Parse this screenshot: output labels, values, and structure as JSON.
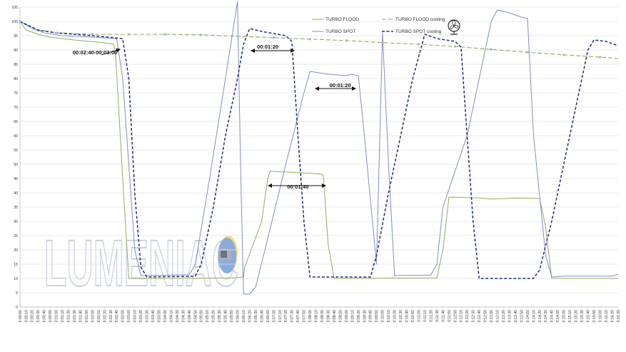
{
  "chart_data": {
    "type": "line",
    "title": "",
    "xlabel": "",
    "ylabel": "",
    "ylim": [
      0,
      105
    ],
    "yticks": [
      0,
      5,
      10,
      15,
      20,
      25,
      30,
      35,
      40,
      45,
      50,
      55,
      60,
      65,
      70,
      75,
      80,
      85,
      90,
      95,
      100,
      105
    ],
    "x_start_seconds": 0,
    "x_end_seconds": 990,
    "x_tick_step_seconds": 10,
    "grid": "y-major",
    "legend_position": "top-right",
    "series": [
      {
        "name": "TURBO FLOOD",
        "color": "#8fae5a",
        "dash": "solid",
        "points": [
          [
            "00:00",
            100
          ],
          [
            "00:10",
            97
          ],
          [
            "00:30",
            95.5
          ],
          [
            "00:50",
            94.5
          ],
          [
            "01:30",
            93.5
          ],
          [
            "02:20",
            92.5
          ],
          [
            "02:35",
            92
          ],
          [
            "02:38",
            89
          ],
          [
            "02:40",
            82
          ],
          [
            "02:50",
            45
          ],
          [
            "03:00",
            10
          ],
          [
            "03:30",
            10
          ],
          [
            "05:50",
            10.2
          ],
          [
            "06:10",
            10.5
          ],
          [
            "06:12",
            14
          ],
          [
            "06:40",
            30
          ],
          [
            "06:50",
            45
          ],
          [
            "06:54",
            47.5
          ],
          [
            "07:30",
            47.2
          ],
          [
            "08:00",
            46.8
          ],
          [
            "08:20",
            46.5
          ],
          [
            "08:22",
            46
          ],
          [
            "08:30",
            22
          ],
          [
            "08:40",
            10
          ],
          [
            "11:30",
            10.2
          ],
          [
            "11:40",
            20
          ],
          [
            "11:50",
            38.5
          ],
          [
            "12:40",
            38.2
          ],
          [
            "13:00",
            37.8
          ],
          [
            "13:40",
            38.2
          ],
          [
            "14:20",
            38
          ],
          [
            "14:30",
            28
          ],
          [
            "14:40",
            10
          ],
          [
            "16:30",
            10
          ]
        ]
      },
      {
        "name": "TURBO FLOOD cooling",
        "color": "#8fae5a",
        "dash": "long-dash",
        "points": [
          [
            "00:00",
            100
          ],
          [
            "00:30",
            97
          ],
          [
            "01:00",
            96
          ],
          [
            "02:00",
            95.5
          ],
          [
            "03:00",
            95.5
          ],
          [
            "04:00",
            95.5
          ],
          [
            "05:00",
            95.3
          ],
          [
            "06:00",
            94.8
          ],
          [
            "07:00",
            94.3
          ],
          [
            "08:00",
            93.8
          ],
          [
            "09:00",
            93.3
          ],
          [
            "10:00",
            92.6
          ],
          [
            "11:00",
            92
          ],
          [
            "12:00",
            91.2
          ],
          [
            "13:00",
            90.2
          ],
          [
            "14:00",
            89.2
          ],
          [
            "15:00",
            88.3
          ],
          [
            "16:00",
            87.5
          ],
          [
            "16:30",
            87
          ]
        ]
      },
      {
        "name": "TURBO SPOT",
        "color": "#7d8fc7",
        "dash": "solid",
        "points": [
          [
            "00:00",
            100
          ],
          [
            "00:20",
            97.5
          ],
          [
            "00:40",
            96
          ],
          [
            "01:10",
            95
          ],
          [
            "02:00",
            94.5
          ],
          [
            "02:40",
            94
          ],
          [
            "02:50",
            80
          ],
          [
            "03:00",
            50
          ],
          [
            "03:10",
            20
          ],
          [
            "03:20",
            11
          ],
          [
            "04:40",
            11.3
          ],
          [
            "04:50",
            15
          ],
          [
            "05:10",
            40
          ],
          [
            "05:40",
            80
          ],
          [
            "06:00",
            107
          ],
          [
            "06:05",
            50
          ],
          [
            "06:10",
            4.5
          ],
          [
            "06:20",
            4.5
          ],
          [
            "06:30",
            7
          ],
          [
            "06:50",
            24
          ],
          [
            "07:20",
            50
          ],
          [
            "07:50",
            75
          ],
          [
            "08:00",
            82.5
          ],
          [
            "08:30",
            81.5
          ],
          [
            "09:00",
            81
          ],
          [
            "09:10",
            81.5
          ],
          [
            "09:20",
            81
          ],
          [
            "09:30",
            60
          ],
          [
            "09:50",
            15
          ],
          [
            "10:00",
            96
          ],
          [
            "10:10",
            50
          ],
          [
            "10:20",
            11
          ],
          [
            "11:20",
            11.2
          ],
          [
            "11:30",
            15
          ],
          [
            "11:40",
            35
          ],
          [
            "12:20",
            60
          ],
          [
            "12:50",
            90
          ],
          [
            "13:00",
            100
          ],
          [
            "13:10",
            104
          ],
          [
            "13:30",
            103
          ],
          [
            "13:50",
            101.5
          ],
          [
            "14:00",
            101
          ],
          [
            "14:10",
            60
          ],
          [
            "14:30",
            18
          ],
          [
            "14:40",
            10.5
          ],
          [
            "15:00",
            10.8
          ],
          [
            "16:20",
            10.8
          ],
          [
            "16:30",
            11.5
          ]
        ]
      },
      {
        "name": "TURBO SPOT cooling",
        "color": "#1f2f7a",
        "dash": "dash",
        "points": [
          [
            "00:00",
            100
          ],
          [
            "00:30",
            97
          ],
          [
            "01:00",
            96
          ],
          [
            "02:00",
            95
          ],
          [
            "02:50",
            94
          ],
          [
            "03:00",
            80
          ],
          [
            "03:10",
            40
          ],
          [
            "03:20",
            14
          ],
          [
            "03:30",
            10.5
          ],
          [
            "04:50",
            10.8
          ],
          [
            "05:00",
            15
          ],
          [
            "05:20",
            35
          ],
          [
            "05:40",
            60
          ],
          [
            "06:00",
            80
          ],
          [
            "06:10",
            92
          ],
          [
            "06:20",
            97.5
          ],
          [
            "06:40",
            96.5
          ],
          [
            "07:20",
            95
          ],
          [
            "07:30",
            93
          ],
          [
            "07:40",
            60
          ],
          [
            "07:50",
            30
          ],
          [
            "08:00",
            10.5
          ],
          [
            "09:40",
            10.5
          ],
          [
            "09:50",
            18
          ],
          [
            "10:10",
            40
          ],
          [
            "10:30",
            60
          ],
          [
            "10:50",
            80
          ],
          [
            "11:10",
            95.5
          ],
          [
            "11:30",
            94
          ],
          [
            "12:00",
            93
          ],
          [
            "12:10",
            91
          ],
          [
            "12:20",
            60
          ],
          [
            "12:30",
            30
          ],
          [
            "12:40",
            10
          ],
          [
            "14:10",
            10
          ],
          [
            "14:20",
            13
          ],
          [
            "14:40",
            30
          ],
          [
            "15:00",
            50
          ],
          [
            "15:20",
            70
          ],
          [
            "15:40",
            90
          ],
          [
            "15:50",
            93.5
          ],
          [
            "16:10",
            93
          ],
          [
            "16:30",
            91.5
          ]
        ]
      }
    ],
    "annotations": [
      {
        "text": "00:02:40-00:03:00",
        "x": "02:04",
        "y": 88.5
      },
      {
        "text": "00:01:20",
        "x": "06:50",
        "y": 90.5
      },
      {
        "text": "00:01:20",
        "x": "08:50",
        "y": 77
      },
      {
        "text": "00:01:40",
        "x": "07:40",
        "y": 41.5
      }
    ],
    "x_tick_labels": [
      "0:00:00",
      "0:00:10",
      "0:00:20",
      "0:00:30",
      "0:00:40",
      "0:00:50",
      "0:01:00",
      "0:01:10",
      "0:01:20",
      "0:01:30",
      "0:01:40",
      "0:01:50",
      "0:02:00",
      "0:02:10",
      "0:02:20",
      "0:02:30",
      "0:02:40",
      "0:02:50",
      "0:03:00",
      "0:03:10",
      "0:03:20",
      "0:03:30",
      "0:03:40",
      "0:03:50",
      "0:04:00",
      "0:04:10",
      "0:04:20",
      "0:04:30",
      "0:04:40",
      "0:04:50",
      "0:05:00",
      "0:05:10",
      "0:05:20",
      "0:05:30",
      "0:05:40",
      "0:05:50",
      "0:06:00",
      "0:06:10",
      "0:06:20",
      "0:06:30",
      "0:06:40",
      "0:06:50",
      "0:07:00",
      "0:07:10",
      "0:07:20",
      "0:07:30",
      "0:07:40",
      "0:07:50",
      "0:08:00",
      "0:08:10",
      "0:08:20",
      "0:08:30",
      "0:08:40",
      "0:08:50",
      "0:09:00",
      "0:09:10",
      "0:09:20",
      "0:09:30",
      "0:09:40",
      "0:09:50",
      "0:10:00",
      "0:10:10",
      "0:10:20",
      "0:10:30",
      "0:10:40",
      "0:10:50",
      "0:11:00",
      "0:11:10",
      "0:11:20",
      "0:11:30",
      "0:11:40",
      "0:11:50",
      "0:12:00",
      "0:12:10",
      "0:12:20",
      "0:12:30",
      "0:12:40",
      "0:12:50",
      "0:13:00",
      "0:13:10",
      "0:13:20",
      "0:13:30",
      "0:13:40",
      "0:13:50",
      "0:14:00",
      "0:14:10",
      "0:14:20",
      "0:14:30",
      "0:14:40",
      "0:14:50",
      "0:15:00",
      "0:15:10",
      "0:15:20",
      "0:15:30",
      "0:15:40",
      "0:15:50",
      "0:16:00",
      "0:16:10",
      "0:16:20",
      "0:16:30"
    ]
  },
  "legend_icon": "fan-icon",
  "watermark": {
    "text": "LUMENIAC",
    "logo": "flashlight-logo"
  }
}
